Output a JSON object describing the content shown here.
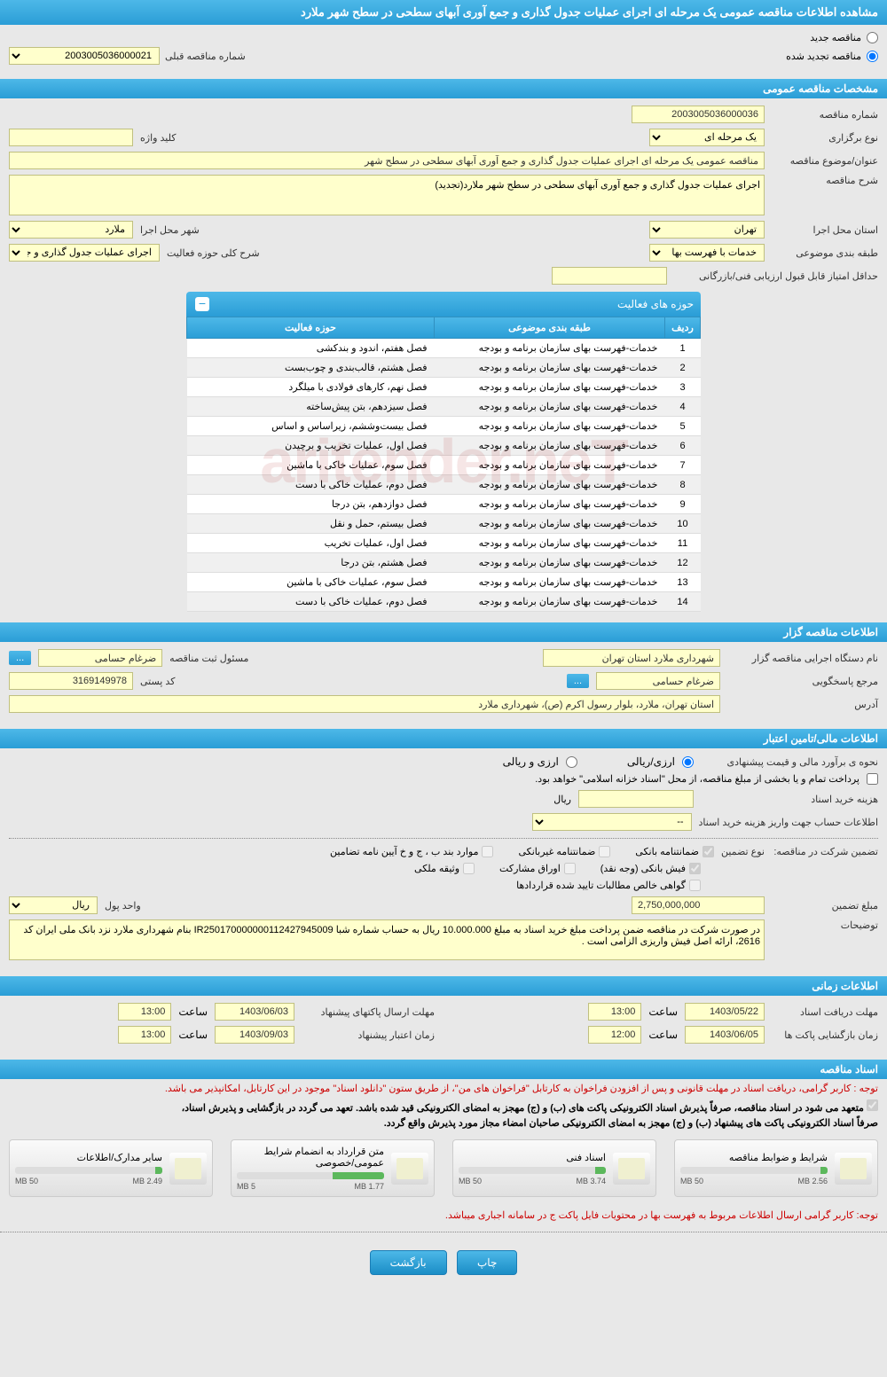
{
  "header": {
    "title": "مشاهده اطلاعات مناقصه عمومی یک مرحله ای اجرای عملیات جدول گذاری و جمع آوری آبهای سطحی در سطح شهر ملارد"
  },
  "top_radio": {
    "new_tender": "مناقصه جدید",
    "renewed_tender": "مناقصه تجدید شده",
    "prev_number_label": "شماره مناقصه قبلی",
    "prev_number_value": "2003005036000021"
  },
  "section_general": "مشخصات مناقصه عمومی",
  "general": {
    "tender_no_label": "شماره مناقصه",
    "tender_no": "2003005036000036",
    "holding_type_label": "نوع برگزاری",
    "holding_type": "یک مرحله ای",
    "keyword_label": "کلید واژه",
    "keyword": "",
    "title_label": "عنوان/موضوع مناقصه",
    "title": "مناقصه عمومی یک مرحله ای اجرای عملیات جدول گذاری و جمع آوری آبهای سطحی در سطح شهر",
    "desc_label": "شرح مناقصه",
    "desc": "اجرای عملیات جدول گذاری و جمع آوری آبهای سطحی در سطح شهر ملارد(تجدید)",
    "province_label": "استان محل اجرا",
    "province": "تهران",
    "city_label": "شهر محل اجرا",
    "city": "ملارد",
    "category_label": "طبقه بندی موضوعی",
    "category": "خدمات با فهرست بها",
    "activity_scope_label": "شرح کلی حوزه فعالیت",
    "activity_scope": "اجرای عملیات جدول گذاری و جمع آوری آبهای",
    "min_score_label": "حداقل امتیاز قابل قبول ارزیابی فنی/بازرگانی",
    "min_score": ""
  },
  "activities_title": "حوزه های فعالیت",
  "activities_cols": {
    "row": "ردیف",
    "category": "طبقه بندی موضوعی",
    "field": "حوزه فعالیت"
  },
  "activities": [
    {
      "row": "1",
      "cat": "خدمات-فهرست بهای سازمان برنامه و بودجه",
      "field": "فصل هفتم، اندود و بندکشی"
    },
    {
      "row": "2",
      "cat": "خدمات-فهرست بهای سازمان برنامه و بودجه",
      "field": "فصل هشتم، قالب‌بندی و چوب‌بست"
    },
    {
      "row": "3",
      "cat": "خدمات-فهرست بهای سازمان برنامه و بودجه",
      "field": "فصل نهم، کارهای فولادی با میلگرد"
    },
    {
      "row": "4",
      "cat": "خدمات-فهرست بهای سازمان برنامه و بودجه",
      "field": "فصل سیزدهم، بتن پیش‌ساخته"
    },
    {
      "row": "5",
      "cat": "خدمات-فهرست بهای سازمان برنامه و بودجه",
      "field": "فصل بیست‌وششم، زیراساس و اساس"
    },
    {
      "row": "6",
      "cat": "خدمات-فهرست بهای سازمان برنامه و بودجه",
      "field": "فصل اول، عملیات تخریب و برچیدن"
    },
    {
      "row": "7",
      "cat": "خدمات-فهرست بهای سازمان برنامه و بودجه",
      "field": "فصل سوم، عملیات خاکی با ماشین"
    },
    {
      "row": "8",
      "cat": "خدمات-فهرست بهای سازمان برنامه و بودجه",
      "field": "فصل دوم، عملیات خاکی با دست"
    },
    {
      "row": "9",
      "cat": "خدمات-فهرست بهای سازمان برنامه و بودجه",
      "field": "فصل دوازدهم، بتن درجا"
    },
    {
      "row": "10",
      "cat": "خدمات-فهرست بهای سازمان برنامه و بودجه",
      "field": "فصل بیستم، حمل و نقل"
    },
    {
      "row": "11",
      "cat": "خدمات-فهرست بهای سازمان برنامه و بودجه",
      "field": "فصل اول، عملیات تخریب"
    },
    {
      "row": "12",
      "cat": "خدمات-فهرست بهای سازمان برنامه و بودجه",
      "field": "فصل هشتم، بتن درجا"
    },
    {
      "row": "13",
      "cat": "خدمات-فهرست بهای سازمان برنامه و بودجه",
      "field": "فصل سوم، عملیات خاکی با ماشین"
    },
    {
      "row": "14",
      "cat": "خدمات-فهرست بهای سازمان برنامه و بودجه",
      "field": "فصل دوم، عملیات خاکی با دست"
    }
  ],
  "section_tenderer": "اطلاعات مناقصه گزار",
  "tenderer": {
    "org_label": "نام دستگاه اجرایی مناقصه گزار",
    "org": "شهرداری ملارد استان تهران",
    "reg_officer_label": "مسئول ثبت مناقصه",
    "reg_officer": "ضرغام حسامی",
    "response_label": "مرجع پاسخگویی",
    "response": "ضرغام حسامی",
    "postal_label": "کد پستی",
    "postal": "3169149978",
    "address_label": "آدرس",
    "address": "استان تهران، ملارد، بلوار رسول اکرم (ص)، شهرداری ملارد"
  },
  "section_financial": "اطلاعات مالی/تامین اعتبار",
  "financial": {
    "estimate_label": "نحوه ی برآورد مالی و قیمت پیشنهادی",
    "opt_arzi_riali": "ارزی/ریالی",
    "opt_arzi_va_riali": "ارزی و ریالی",
    "payment_note": "پرداخت تمام و یا بخشی از مبلغ مناقصه، از محل \"اسناد خزانه اسلامی\" خواهد بود.",
    "doc_fee_label": "هزینه خرید اسناد",
    "doc_fee_unit": "ریال",
    "account_label": "اطلاعات حساب جهت واریز هزینه خرید اسناد",
    "account_value": "--"
  },
  "guarantee": {
    "group_label": "تضمین شرکت در مناقصه:",
    "type_label": "نوع تضمین",
    "opts": {
      "bank_guarantee": "ضمانتنامه بانکی",
      "nonbank_guarantee": "ضمانتنامه غیربانکی",
      "items_bjh": "موارد بند ب ، ج و خ آیین نامه تضامین",
      "bank_receipt": "فیش بانکی (وجه نقد)",
      "participation_bonds": "اوراق مشارکت",
      "property_pledge": "وثیقه ملکی",
      "net_receivables": "گواهی خالص مطالبات تایید شده قراردادها"
    },
    "amount_label": "مبلغ تضمین",
    "amount": "2,750,000,000",
    "currency_label": "واحد پول",
    "currency": "ریال",
    "desc_label": "توضیحات",
    "desc": "در صورت شرکت در مناقصه ضمن پرداخت مبلغ خرید اسناد به مبلغ 10.000.000 ریال به حساب شماره شبا IR250170000000112427945009 بنام شهرداری ملارد نزد بانک ملی ایران کد 2616، ارائه اصل فیش واریزی الزامی است ."
  },
  "section_time": "اطلاعات زمانی",
  "time": {
    "receive_label": "مهلت دریافت اسناد",
    "receive_date": "1403/05/22",
    "receive_time": "13:00",
    "submit_label": "مهلت ارسال پاکتهای پیشنهاد",
    "submit_date": "1403/06/03",
    "submit_time": "13:00",
    "open_label": "زمان بازگشایی پاکت ها",
    "open_date": "1403/06/05",
    "open_time": "12:00",
    "validity_label": "زمان اعتبار پیشنهاد",
    "validity_date": "1403/09/03",
    "validity_time": "13:00",
    "time_label": "ساعت"
  },
  "section_docs": "اسناد مناقصه",
  "notes": {
    "note1": "توجه : کاربر گرامی، دریافت اسناد در مهلت قانونی و پس از افزودن فراخوان به کارتابل \"فراخوان های من\"، از طریق ستون \"دانلود اسناد\" موجود در این کارتابل، امکانپذیر می باشد.",
    "note2a": "متعهد می شود در اسناد مناقصه، صرفاً پذیرش اسناد الکترونیکی پاکت های (ب) و (ج) مهجز به امضای الکترونیکی قید شده باشد. تعهد می گردد در بازگشایی و پذیرش اسناد،",
    "note2b": "صرفاً اسناد الکترونیکی پاکت های پیشنهاد (ب) و (ج) مهجز به امضای الکترونیکی صاحبان امضاء مجاز مورد پذیرش واقع گردد.",
    "note3": "توجه: کاربر گرامی ارسال اطلاعات مربوط به فهرست بها در محتویات فایل پاکت ج در سامانه اجباری میباشد."
  },
  "files": [
    {
      "title": "شرایط و ضوابط مناقصه",
      "size": "2.56 MB",
      "max": "50 MB",
      "pct": 5
    },
    {
      "title": "اسناد فنی",
      "size": "3.74 MB",
      "max": "50 MB",
      "pct": 7
    },
    {
      "title": "متن قرارداد به انضمام شرایط عمومی/خصوصی",
      "size": "1.77 MB",
      "max": "5 MB",
      "pct": 35
    },
    {
      "title": "سایر مدارک/اطلاعات",
      "size": "2.49 MB",
      "max": "50 MB",
      "pct": 5
    }
  ],
  "footer": {
    "print": "چاپ",
    "back": "بازگشت"
  },
  "watermark": "aritender.neT"
}
